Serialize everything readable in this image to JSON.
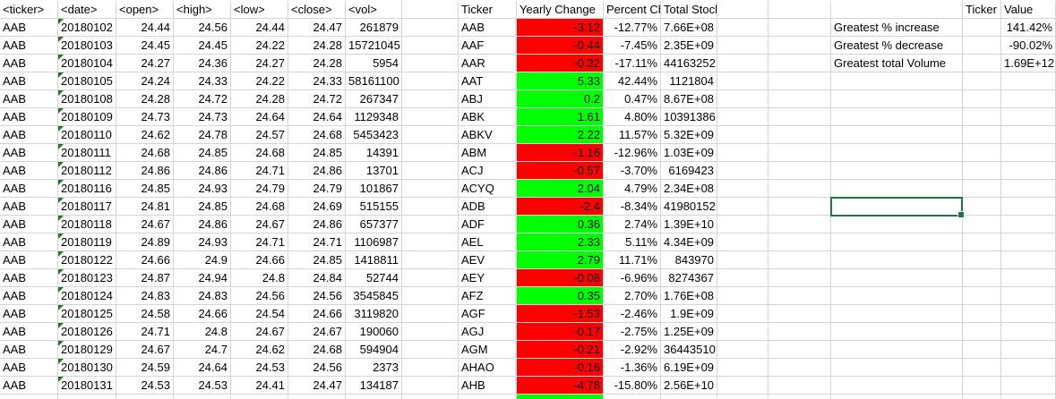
{
  "colors": {
    "grid": "#d4d4d4",
    "negative_fill": "#ff0000",
    "positive_fill": "#00ff00",
    "selection": "#217346",
    "error_triangle": "#1e7a1e"
  },
  "columns": [
    "<ticker>",
    "<date>",
    "<open>",
    "<high>",
    "<low>",
    "<close>",
    "<vol>",
    "",
    "Ticker",
    "Yearly Change",
    "Percent Change",
    "Total Stock Volume",
    "",
    "",
    "",
    "Ticker",
    "Value"
  ],
  "rows": [
    [
      "AAB",
      "20180102",
      "24.44",
      "24.56",
      "24.44",
      "24.47",
      "261879",
      "",
      "AAB",
      "-3.12",
      "-12.77%",
      "7.66E+08",
      "",
      "",
      "Greatest % increase",
      "",
      "141.42%"
    ],
    [
      "AAB",
      "20180103",
      "24.45",
      "24.45",
      "24.22",
      "24.28",
      "15721045",
      "",
      "AAF",
      "-0.44",
      "-7.45%",
      "2.35E+09",
      "",
      "",
      "Greatest % decrease",
      "",
      "-90.02%"
    ],
    [
      "AAB",
      "20180104",
      "24.27",
      "24.36",
      "24.27",
      "24.28",
      "5954",
      "",
      "AAR",
      "-0.32",
      "-17.11%",
      "44163252",
      "",
      "",
      "Greatest total Volume",
      "",
      "1.69E+12"
    ],
    [
      "AAB",
      "20180105",
      "24.24",
      "24.33",
      "24.22",
      "24.33",
      "58161100",
      "",
      "AAT",
      "5.33",
      "42.44%",
      "1121804",
      "",
      "",
      "",
      "",
      ""
    ],
    [
      "AAB",
      "20180108",
      "24.28",
      "24.72",
      "24.28",
      "24.72",
      "267347",
      "",
      "ABJ",
      "0.2",
      "0.47%",
      "8.67E+08",
      "",
      "",
      "",
      "",
      ""
    ],
    [
      "AAB",
      "20180109",
      "24.73",
      "24.73",
      "24.64",
      "24.64",
      "1129348",
      "",
      "ABK",
      "1.61",
      "4.80%",
      "10391386",
      "",
      "",
      "",
      "",
      ""
    ],
    [
      "AAB",
      "20180110",
      "24.62",
      "24.78",
      "24.57",
      "24.68",
      "5453423",
      "",
      "ABKV",
      "2.22",
      "11.57%",
      "5.32E+09",
      "",
      "",
      "",
      "",
      ""
    ],
    [
      "AAB",
      "20180111",
      "24.68",
      "24.85",
      "24.68",
      "24.85",
      "14391",
      "",
      "ABM",
      "-1.16",
      "-12.96%",
      "1.03E+09",
      "",
      "",
      "",
      "",
      ""
    ],
    [
      "AAB",
      "20180112",
      "24.86",
      "24.86",
      "24.71",
      "24.86",
      "13701",
      "",
      "ACJ",
      "-0.57",
      "-3.70%",
      "6169423",
      "",
      "",
      "",
      "",
      ""
    ],
    [
      "AAB",
      "20180116",
      "24.85",
      "24.93",
      "24.79",
      "24.79",
      "101867",
      "",
      "ACYQ",
      "2.04",
      "4.79%",
      "2.34E+08",
      "",
      "",
      "",
      "",
      ""
    ],
    [
      "AAB",
      "20180117",
      "24.81",
      "24.85",
      "24.68",
      "24.69",
      "515155",
      "",
      "ADB",
      "-2.4",
      "-8.34%",
      "41980152",
      "",
      "",
      "",
      "",
      ""
    ],
    [
      "AAB",
      "20180118",
      "24.67",
      "24.86",
      "24.67",
      "24.86",
      "657377",
      "",
      "ADF",
      "0.36",
      "2.74%",
      "1.39E+10",
      "",
      "",
      "",
      "",
      ""
    ],
    [
      "AAB",
      "20180119",
      "24.89",
      "24.93",
      "24.71",
      "24.71",
      "1106987",
      "",
      "AEL",
      "2.33",
      "5.11%",
      "4.34E+09",
      "",
      "",
      "",
      "",
      ""
    ],
    [
      "AAB",
      "20180122",
      "24.66",
      "24.9",
      "24.66",
      "24.85",
      "1418811",
      "",
      "AEV",
      "2.79",
      "11.71%",
      "843970",
      "",
      "",
      "",
      "",
      ""
    ],
    [
      "AAB",
      "20180123",
      "24.87",
      "24.94",
      "24.8",
      "24.84",
      "52744",
      "",
      "AEY",
      "-0.08",
      "-6.96%",
      "8274367",
      "",
      "",
      "",
      "",
      ""
    ],
    [
      "AAB",
      "20180124",
      "24.83",
      "24.83",
      "24.56",
      "24.56",
      "3545845",
      "",
      "AFZ",
      "0.35",
      "2.70%",
      "1.76E+08",
      "",
      "",
      "",
      "",
      ""
    ],
    [
      "AAB",
      "20180125",
      "24.58",
      "24.66",
      "24.54",
      "24.66",
      "3119820",
      "",
      "AGF",
      "-1.53",
      "-2.46%",
      "1.9E+09",
      "",
      "",
      "",
      "",
      ""
    ],
    [
      "AAB",
      "20180126",
      "24.71",
      "24.8",
      "24.67",
      "24.67",
      "190060",
      "",
      "AGJ",
      "-0.17",
      "-2.75%",
      "1.25E+09",
      "",
      "",
      "",
      "",
      ""
    ],
    [
      "AAB",
      "20180129",
      "24.67",
      "24.7",
      "24.62",
      "24.68",
      "594904",
      "",
      "AGM",
      "-0.21",
      "-2.92%",
      "36443510",
      "",
      "",
      "",
      "",
      ""
    ],
    [
      "AAB",
      "20180130",
      "24.59",
      "24.64",
      "24.53",
      "24.56",
      "2373",
      "",
      "AHAO",
      "-0.16",
      "-1.36%",
      "6.19E+09",
      "",
      "",
      "",
      "",
      ""
    ],
    [
      "AAB",
      "20180131",
      "24.53",
      "24.53",
      "24.41",
      "24.47",
      "134187",
      "",
      "AHB",
      "-4.78",
      "-15.80%",
      "2.56E+10",
      "",
      "",
      "",
      "",
      ""
    ],
    [
      "",
      "",
      "",
      "",
      "",
      "",
      "",
      "",
      "",
      "",
      "",
      "",
      "",
      "",
      "",
      "",
      ""
    ]
  ]
}
